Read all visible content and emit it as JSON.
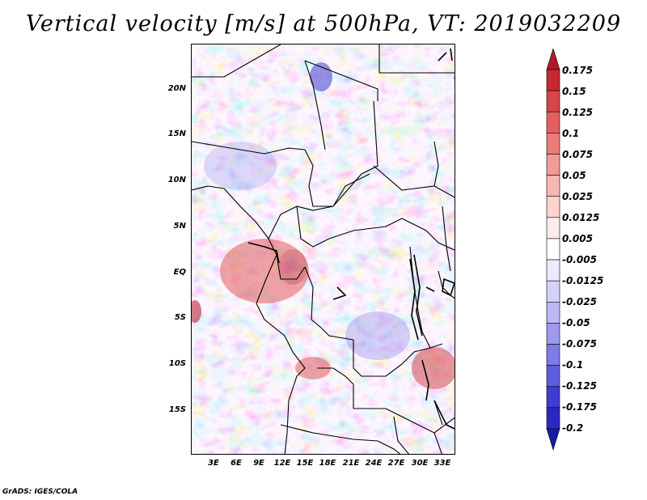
{
  "title": "Vertical velocity [m/s] at 500hPa, VT: 2019032209",
  "credit": "GrADS: IGES/COLA",
  "map": {
    "lat_labels": [
      "20N",
      "15N",
      "10N",
      "5N",
      "EQ",
      "5S",
      "10S",
      "15S"
    ],
    "lon_labels": [
      "3E",
      "6E",
      "9E",
      "12E",
      "15E",
      "18E",
      "21E",
      "24E",
      "27E",
      "30E",
      "33E"
    ],
    "field": "vertical velocity",
    "units": "m/s",
    "level": "500hPa",
    "valid_time": "2019032209"
  },
  "colorbar": {
    "levels": [
      "0.175",
      "0.15",
      "0.125",
      "0.1",
      "0.075",
      "0.05",
      "0.025",
      "0.0125",
      "0.005",
      "-0.005",
      "-0.0125",
      "-0.025",
      "-0.05",
      "-0.075",
      "-0.1",
      "-0.125",
      "-0.175",
      "-0.2"
    ],
    "colors": [
      "#b2182b",
      "#c62a2e",
      "#d6464a",
      "#e35f5f",
      "#ec7b78",
      "#f39c97",
      "#f8b8b2",
      "#fcd3cf",
      "#feeceb",
      "#ffffff",
      "#ecebfd",
      "#d4d2fa",
      "#bcb9f6",
      "#9d9af0",
      "#7f7be8",
      "#5f5cdf",
      "#3f3cd0",
      "#2a28c0",
      "#1a19a8"
    ]
  }
}
